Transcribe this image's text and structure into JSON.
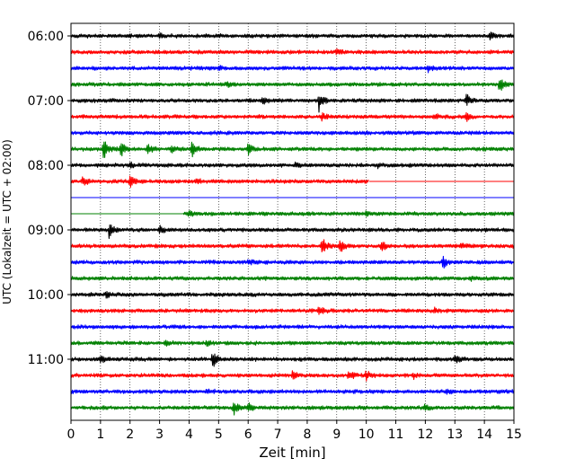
{
  "chart_data": {
    "type": "line",
    "title": "",
    "xlabel": "Zeit  [min]",
    "ylabel": "UTC (Lokalzeit = UTC + 02:00)",
    "xlim": [
      0,
      15
    ],
    "xticks": [
      0,
      1,
      2,
      3,
      4,
      5,
      6,
      7,
      8,
      9,
      10,
      11,
      12,
      13,
      14,
      15
    ],
    "grid_x": true,
    "grid_y": false,
    "row_interval_minutes": 15,
    "start_time": "06:00",
    "yticks": [
      "06:00",
      "07:00",
      "08:00",
      "09:00",
      "10:00",
      "11:00"
    ],
    "color_cycle": [
      "#000000",
      "#ff0000",
      "#0000ff",
      "#008000"
    ],
    "rows": [
      {
        "time": "06:00",
        "color": "#000000",
        "data_start_min": 0,
        "data_end_min": 15,
        "events": [
          {
            "t": 3.0,
            "amp": 0.25
          },
          {
            "t": 14.2,
            "amp": 0.45
          }
        ]
      },
      {
        "time": "06:15",
        "color": "#ff0000",
        "data_start_min": 0,
        "data_end_min": 15,
        "events": [
          {
            "t": 9.0,
            "amp": 0.25
          }
        ]
      },
      {
        "time": "06:30",
        "color": "#0000ff",
        "data_start_min": 0,
        "data_end_min": 15,
        "events": [
          {
            "t": 5.0,
            "amp": 0.2
          },
          {
            "t": 12.1,
            "amp": 0.35
          }
        ]
      },
      {
        "time": "06:45",
        "color": "#008000",
        "data_start_min": 0,
        "data_end_min": 15,
        "events": [
          {
            "t": 5.3,
            "amp": 0.25
          },
          {
            "t": 14.5,
            "amp": 0.9
          }
        ]
      },
      {
        "time": "07:00",
        "color": "#000000",
        "data_start_min": 0,
        "data_end_min": 15,
        "events": [
          {
            "t": 6.5,
            "amp": 0.4
          },
          {
            "t": 8.4,
            "amp": 1.1
          },
          {
            "t": 13.4,
            "amp": 0.6
          }
        ]
      },
      {
        "time": "07:15",
        "color": "#ff0000",
        "data_start_min": 0,
        "data_end_min": 15,
        "events": [
          {
            "t": 8.5,
            "amp": 0.35
          },
          {
            "t": 12.3,
            "amp": 0.3
          },
          {
            "t": 13.4,
            "amp": 0.4
          }
        ]
      },
      {
        "time": "07:30",
        "color": "#0000ff",
        "data_start_min": 0,
        "data_end_min": 15,
        "events": []
      },
      {
        "time": "07:45",
        "color": "#008000",
        "data_start_min": 0,
        "data_end_min": 15,
        "events": [
          {
            "t": 1.1,
            "amp": 1.3
          },
          {
            "t": 1.7,
            "amp": 0.7
          },
          {
            "t": 2.6,
            "amp": 0.6
          },
          {
            "t": 3.4,
            "amp": 0.4
          },
          {
            "t": 4.1,
            "amp": 0.8
          },
          {
            "t": 6.0,
            "amp": 0.6
          }
        ]
      },
      {
        "time": "08:00",
        "color": "#000000",
        "data_start_min": 0,
        "data_end_min": 15,
        "events": [
          {
            "t": 2.0,
            "amp": 0.3
          },
          {
            "t": 7.6,
            "amp": 0.25
          },
          {
            "t": 10.4,
            "amp": 0.25
          }
        ]
      },
      {
        "time": "08:15",
        "color": "#ff0000",
        "data_start_min": 0,
        "data_end_min": 10.1,
        "events": [
          {
            "t": 0.4,
            "amp": 0.5
          },
          {
            "t": 2.0,
            "amp": 0.6
          },
          {
            "t": 4.2,
            "amp": 0.35
          }
        ]
      },
      {
        "time": "08:30",
        "color": "#0000ff",
        "data_start_min": 15,
        "data_end_min": 15,
        "events": []
      },
      {
        "time": "08:45",
        "color": "#008000",
        "data_start_min": 3.8,
        "data_end_min": 15,
        "events": [
          {
            "t": 4.0,
            "amp": 0.3
          },
          {
            "t": 10.0,
            "amp": 0.2
          }
        ]
      },
      {
        "time": "09:00",
        "color": "#000000",
        "data_start_min": 0,
        "data_end_min": 15,
        "events": [
          {
            "t": 1.3,
            "amp": 0.8
          },
          {
            "t": 3.0,
            "amp": 0.4
          }
        ]
      },
      {
        "time": "09:15",
        "color": "#ff0000",
        "data_start_min": 0,
        "data_end_min": 15,
        "events": [
          {
            "t": 8.5,
            "amp": 1.0
          },
          {
            "t": 9.1,
            "amp": 0.8
          },
          {
            "t": 10.5,
            "amp": 0.6
          },
          {
            "t": 13.2,
            "amp": 0.3
          }
        ]
      },
      {
        "time": "09:30",
        "color": "#0000ff",
        "data_start_min": 0,
        "data_end_min": 15,
        "events": [
          {
            "t": 6.0,
            "amp": 0.3
          },
          {
            "t": 12.6,
            "amp": 0.6
          }
        ]
      },
      {
        "time": "09:45",
        "color": "#008000",
        "data_start_min": 0,
        "data_end_min": 15,
        "events": [
          {
            "t": 13.5,
            "amp": 0.3
          }
        ]
      },
      {
        "time": "10:00",
        "color": "#000000",
        "data_start_min": 0,
        "data_end_min": 15,
        "events": [
          {
            "t": 1.2,
            "amp": 0.3
          }
        ]
      },
      {
        "time": "10:15",
        "color": "#ff0000",
        "data_start_min": 0,
        "data_end_min": 15,
        "events": [
          {
            "t": 8.4,
            "amp": 0.45
          },
          {
            "t": 12.3,
            "amp": 0.3
          }
        ]
      },
      {
        "time": "10:30",
        "color": "#0000ff",
        "data_start_min": 0,
        "data_end_min": 15,
        "events": []
      },
      {
        "time": "10:45",
        "color": "#008000",
        "data_start_min": 0,
        "data_end_min": 15,
        "events": [
          {
            "t": 3.2,
            "amp": 0.3
          },
          {
            "t": 4.6,
            "amp": 0.35
          }
        ]
      },
      {
        "time": "11:00",
        "color": "#000000",
        "data_start_min": 0,
        "data_end_min": 15,
        "events": [
          {
            "t": 1.0,
            "amp": 0.4
          },
          {
            "t": 4.8,
            "amp": 0.9
          },
          {
            "t": 13.0,
            "amp": 0.4
          }
        ]
      },
      {
        "time": "11:15",
        "color": "#ff0000",
        "data_start_min": 0,
        "data_end_min": 15,
        "events": [
          {
            "t": 7.5,
            "amp": 0.4
          },
          {
            "t": 9.4,
            "amp": 0.55
          },
          {
            "t": 10.0,
            "amp": 0.5
          },
          {
            "t": 11.6,
            "amp": 0.3
          }
        ]
      },
      {
        "time": "11:30",
        "color": "#0000ff",
        "data_start_min": 0,
        "data_end_min": 15,
        "events": [
          {
            "t": 4.6,
            "amp": 0.3
          },
          {
            "t": 12.7,
            "amp": 0.2
          }
        ]
      },
      {
        "time": "11:45",
        "color": "#008000",
        "data_start_min": 0,
        "data_end_min": 15,
        "events": [
          {
            "t": 5.5,
            "amp": 0.8
          },
          {
            "t": 6.0,
            "amp": 0.5
          },
          {
            "t": 12.0,
            "amp": 0.3
          }
        ]
      }
    ]
  }
}
